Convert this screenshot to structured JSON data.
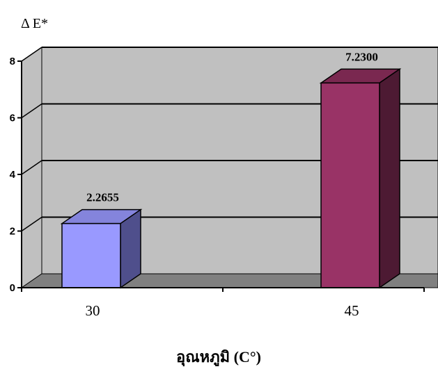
{
  "chart_data": {
    "type": "bar",
    "title": "",
    "ylabel": "Δ E*",
    "xlabel": "อุณหภูมิ (C°)",
    "categories": [
      "30",
      "45"
    ],
    "values": [
      2.2655,
      7.23
    ],
    "value_labels": [
      "2.2655",
      "7.2300"
    ],
    "ylim": [
      0,
      8
    ],
    "yticks": [
      "0",
      "2",
      "4",
      "6",
      "8"
    ],
    "grid": true,
    "three_d": true,
    "colors": {
      "bar_fronts": [
        "#9999ff",
        "#993366"
      ],
      "bar_sides": [
        "#4f4f8c",
        "#4d1a33"
      ],
      "bar_tops": [
        "#8484dc",
        "#7a2850"
      ],
      "wall": "#c0c0c0",
      "floor": "#808080"
    }
  }
}
